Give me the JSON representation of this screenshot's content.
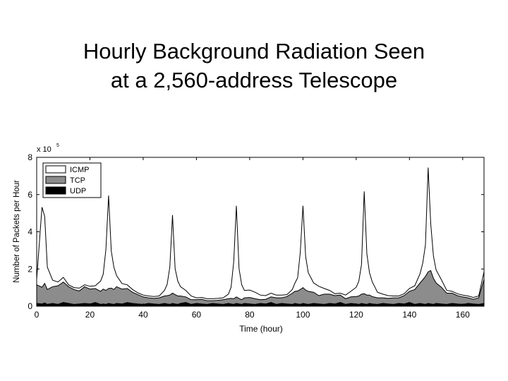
{
  "slide": {
    "title_line1": "Hourly Background Radiation Seen",
    "title_line2": "at a 2,560-address Telescope"
  },
  "chart_data": {
    "type": "area",
    "stacked": true,
    "title": "",
    "xlabel": "Time (hour)",
    "ylabel": "Number of Packets per Hour",
    "y_multiplier_label": "x 10",
    "y_multiplier_exponent": "5",
    "xlim": [
      0,
      168
    ],
    "ylim": [
      0,
      8
    ],
    "x_ticks": [
      0,
      20,
      40,
      60,
      80,
      100,
      120,
      140,
      160
    ],
    "y_ticks": [
      0,
      2,
      4,
      6,
      8
    ],
    "legend_position": "top-left",
    "colors": {
      "ICMP": "#ffffff",
      "TCP": "#8c8c8c",
      "UDP": "#000000",
      "axis": "#000000"
    },
    "x": [
      0,
      2,
      3,
      4,
      6,
      8,
      10,
      12,
      14,
      16,
      18,
      20,
      22,
      24,
      25,
      26,
      27,
      28,
      29,
      30,
      32,
      34,
      36,
      38,
      40,
      42,
      44,
      46,
      48,
      49,
      50,
      51,
      52,
      53,
      54,
      56,
      58,
      60,
      62,
      64,
      66,
      68,
      70,
      72,
      73,
      74,
      75,
      76,
      77,
      78,
      80,
      82,
      84,
      86,
      88,
      90,
      92,
      94,
      96,
      97,
      98,
      99,
      100,
      101,
      102,
      104,
      106,
      108,
      110,
      112,
      114,
      116,
      118,
      120,
      121,
      122,
      123,
      124,
      125,
      126,
      128,
      130,
      132,
      134,
      136,
      138,
      140,
      142,
      144,
      145,
      146,
      147,
      148,
      149,
      150,
      152,
      154,
      156,
      158,
      160,
      162,
      164,
      166,
      168
    ],
    "series": [
      {
        "name": "UDP",
        "values": [
          0.15,
          0.12,
          0.18,
          0.1,
          0.15,
          0.1,
          0.2,
          0.15,
          0.1,
          0.12,
          0.15,
          0.12,
          0.2,
          0.1,
          0.12,
          0.1,
          0.15,
          0.12,
          0.1,
          0.15,
          0.12,
          0.2,
          0.15,
          0.12,
          0.1,
          0.15,
          0.12,
          0.1,
          0.15,
          0.12,
          0.1,
          0.15,
          0.12,
          0.1,
          0.15,
          0.2,
          0.1,
          0.15,
          0.12,
          0.1,
          0.15,
          0.12,
          0.1,
          0.15,
          0.12,
          0.1,
          0.15,
          0.12,
          0.1,
          0.15,
          0.12,
          0.1,
          0.15,
          0.12,
          0.2,
          0.1,
          0.15,
          0.12,
          0.1,
          0.15,
          0.12,
          0.1,
          0.15,
          0.12,
          0.1,
          0.15,
          0.12,
          0.1,
          0.15,
          0.12,
          0.2,
          0.1,
          0.15,
          0.12,
          0.1,
          0.15,
          0.12,
          0.1,
          0.15,
          0.12,
          0.1,
          0.15,
          0.12,
          0.1,
          0.15,
          0.12,
          0.2,
          0.1,
          0.15,
          0.12,
          0.1,
          0.15,
          0.12,
          0.1,
          0.15,
          0.12,
          0.1,
          0.15,
          0.12,
          0.1,
          0.15,
          0.12,
          0.1,
          0.15
        ]
      },
      {
        "name": "TCP",
        "values": [
          1.0,
          0.9,
          1.05,
          0.8,
          0.9,
          1.0,
          1.1,
          0.9,
          0.8,
          0.7,
          0.9,
          0.8,
          0.75,
          0.7,
          0.8,
          0.75,
          0.8,
          0.85,
          0.8,
          0.9,
          0.8,
          0.75,
          0.6,
          0.5,
          0.4,
          0.3,
          0.3,
          0.35,
          0.4,
          0.45,
          0.5,
          0.55,
          0.5,
          0.45,
          0.4,
          0.3,
          0.25,
          0.2,
          0.25,
          0.2,
          0.15,
          0.2,
          0.25,
          0.25,
          0.3,
          0.3,
          0.35,
          0.3,
          0.25,
          0.3,
          0.35,
          0.3,
          0.2,
          0.25,
          0.3,
          0.35,
          0.3,
          0.4,
          0.6,
          0.65,
          0.7,
          0.8,
          0.85,
          0.75,
          0.7,
          0.6,
          0.45,
          0.55,
          0.5,
          0.45,
          0.4,
          0.3,
          0.35,
          0.4,
          0.45,
          0.5,
          0.55,
          0.5,
          0.45,
          0.4,
          0.35,
          0.3,
          0.3,
          0.35,
          0.3,
          0.45,
          0.6,
          0.8,
          1.1,
          1.3,
          1.5,
          1.7,
          1.8,
          1.4,
          1.1,
          0.9,
          0.6,
          0.55,
          0.45,
          0.4,
          0.3,
          0.25,
          0.35,
          1.3
        ]
      },
      {
        "name": "ICMP",
        "values": [
          0.3,
          4.3,
          3.6,
          1.2,
          0.35,
          0.2,
          0.25,
          0.1,
          0.1,
          0.15,
          0.1,
          0.15,
          0.15,
          0.55,
          0.8,
          2.2,
          5.0,
          2.0,
          1.2,
          0.6,
          0.3,
          0.2,
          0.15,
          0.1,
          0.1,
          0.1,
          0.1,
          0.1,
          0.3,
          0.6,
          1.5,
          4.2,
          1.4,
          0.8,
          0.5,
          0.35,
          0.2,
          0.1,
          0.1,
          0.1,
          0.1,
          0.1,
          0.1,
          0.25,
          0.6,
          2.0,
          4.9,
          1.6,
          0.8,
          0.4,
          0.4,
          0.35,
          0.25,
          0.2,
          0.2,
          0.15,
          0.15,
          0.1,
          0.2,
          0.45,
          0.7,
          2.0,
          4.4,
          1.8,
          1.0,
          0.5,
          0.5,
          0.3,
          0.2,
          0.1,
          0.1,
          0.2,
          0.3,
          0.5,
          0.8,
          1.6,
          5.5,
          2.2,
          1.2,
          0.8,
          0.3,
          0.2,
          0.15,
          0.1,
          0.1,
          0.1,
          0.15,
          0.2,
          0.5,
          0.9,
          1.7,
          5.6,
          2.5,
          1.2,
          0.7,
          0.4,
          0.15,
          0.1,
          0.1,
          0.1,
          0.1,
          0.1,
          0.1,
          0.4
        ]
      }
    ]
  }
}
